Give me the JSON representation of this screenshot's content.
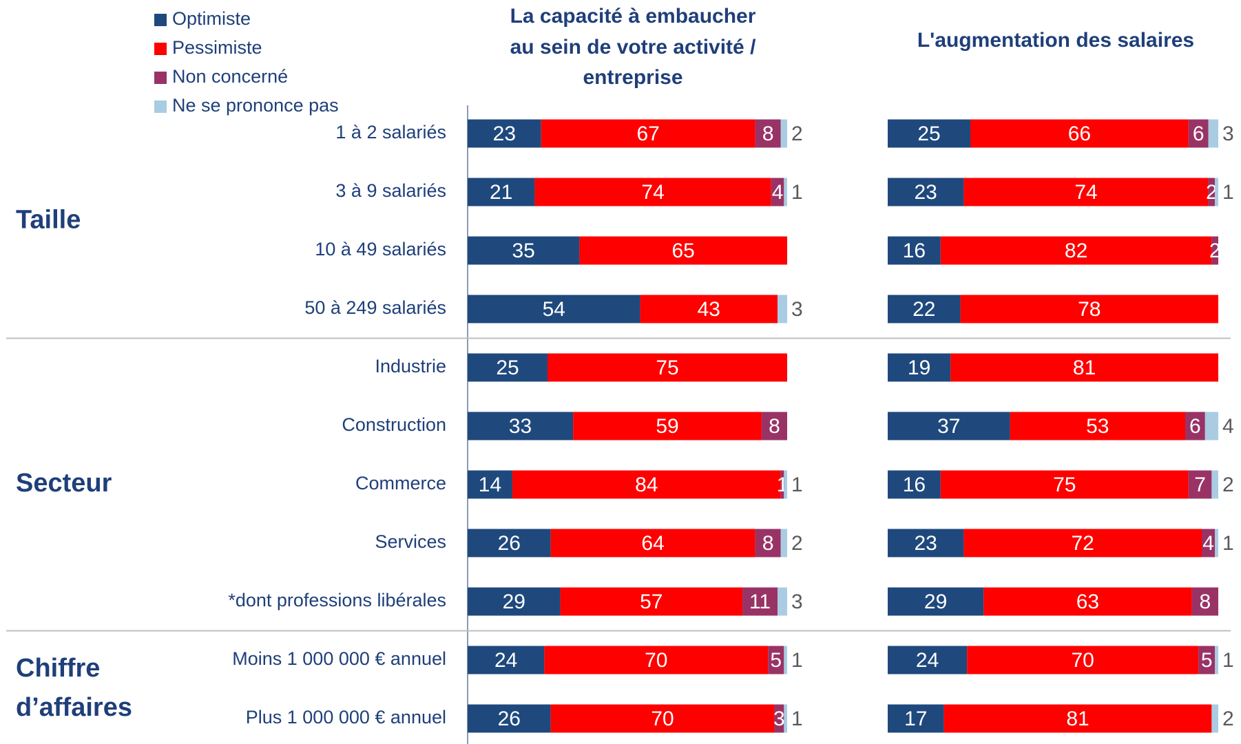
{
  "groups": [
    {
      "label": [
        "Taille"
      ],
      "categories": [
        "1 à 2 salariés",
        "3 à 9 salariés",
        "10 à 49 salariés",
        "50 à 249 salariés"
      ]
    },
    {
      "label": [
        "Secteur"
      ],
      "categories": [
        "Industrie",
        "Construction",
        "Commerce",
        "Services",
        "*dont professions libérales"
      ]
    },
    {
      "label": [
        "Chiffre",
        "d’affaires"
      ],
      "categories": [
        "Moins  1 000 000  € annuel",
        "Plus  1 000 000  € annuel"
      ]
    }
  ],
  "chart_data": [
    {
      "type": "stacked-bar",
      "title": [
        "La capacité à embaucher",
        "au sein de votre activité /",
        "entreprise"
      ],
      "xlim": [
        0,
        100
      ],
      "series": [
        {
          "name": "Optimiste",
          "color": "#1f497d",
          "values": [
            23,
            21,
            35,
            54,
            25,
            33,
            14,
            26,
            29,
            24,
            26
          ]
        },
        {
          "name": "Pessimiste",
          "color": "#ff0000",
          "values": [
            67,
            74,
            65,
            43,
            75,
            59,
            84,
            64,
            57,
            70,
            70
          ]
        },
        {
          "name": "Non concerné",
          "color": "#993366",
          "values": [
            8,
            4,
            null,
            null,
            null,
            8,
            1,
            8,
            11,
            5,
            3
          ]
        },
        {
          "name": "Ne se prononce pas",
          "color": "#a9cce3",
          "values": [
            2,
            1,
            null,
            3,
            null,
            null,
            1,
            2,
            3,
            1,
            1
          ]
        }
      ]
    },
    {
      "type": "stacked-bar",
      "title": [
        "L'augmentation des salaires"
      ],
      "xlim": [
        0,
        100
      ],
      "series": [
        {
          "color": "#1f497d",
          "values": [
            25,
            23,
            16,
            22,
            19,
            37,
            16,
            23,
            29,
            24,
            17
          ]
        },
        {
          "color": "#ff0000",
          "values": [
            66,
            74,
            82,
            78,
            81,
            53,
            75,
            72,
            63,
            70,
            81
          ]
        },
        {
          "color": "#993366",
          "values": [
            6,
            2,
            2,
            null,
            null,
            6,
            7,
            4,
            8,
            5,
            null
          ]
        },
        {
          "color": "#a9cce3",
          "values": [
            3,
            1,
            null,
            null,
            null,
            4,
            2,
            1,
            null,
            1,
            2
          ]
        }
      ]
    }
  ]
}
